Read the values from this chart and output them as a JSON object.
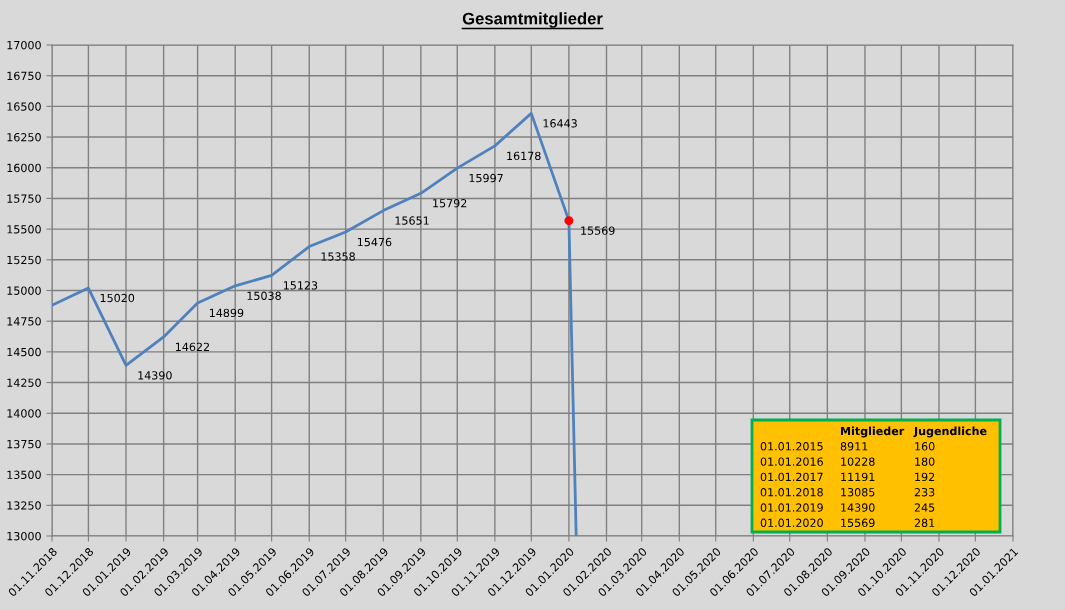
{
  "chart_data": {
    "type": "line",
    "title": "Gesamtmitglieder",
    "x": [
      "2018-11-01",
      "2018-12-01",
      "2019-01-01",
      "2019-02-01",
      "2019-03-01",
      "2019-04-01",
      "2019-05-01",
      "2019-06-01",
      "2019-07-01",
      "2019-08-01",
      "2019-09-01",
      "2019-10-01",
      "2019-11-01",
      "2019-12-01",
      "2020-01-01",
      "2020-01-07"
    ],
    "series": [
      {
        "color": "#4f81bd",
        "values": [
          14880,
          15020,
          14390,
          14622,
          14899,
          15038,
          15123,
          15358,
          15476,
          15651,
          15792,
          15997,
          16178,
          16443,
          15569,
          13000
        ],
        "value_labels": [
          null,
          "15020",
          "14390",
          "14622",
          "14899",
          "15038",
          "15123",
          "15358",
          "15476",
          "15651",
          "15792",
          "15997",
          "16178",
          "16443",
          "15569",
          null
        ]
      },
      {
        "type": "scatter",
        "color": "#ff0000",
        "x": [
          "2020-01-01"
        ],
        "values": [
          15569
        ]
      }
    ],
    "xlim": [
      "2018-11-01",
      "2021-01-01"
    ],
    "xticks": [
      {
        "value": "2018-11-01",
        "label": "01.11.2018"
      },
      {
        "value": "2018-12-01",
        "label": "01.12.2018"
      },
      {
        "value": "2019-01-01",
        "label": "01.01.2019"
      },
      {
        "value": "2019-02-01",
        "label": "01.02.2019"
      },
      {
        "value": "2019-03-01",
        "label": "01.03.2019"
      },
      {
        "value": "2019-04-01",
        "label": "01.04.2019"
      },
      {
        "value": "2019-05-01",
        "label": "01.05.2019"
      },
      {
        "value": "2019-06-01",
        "label": "01.06.2019"
      },
      {
        "value": "2019-07-01",
        "label": "01.07.2019"
      },
      {
        "value": "2019-08-01",
        "label": "01.08.2019"
      },
      {
        "value": "2019-09-01",
        "label": "01.09.2019"
      },
      {
        "value": "2019-10-01",
        "label": "01.10.2019"
      },
      {
        "value": "2019-11-01",
        "label": "01.11.2019"
      },
      {
        "value": "2019-12-01",
        "label": "01.12.2019"
      },
      {
        "value": "2020-01-01",
        "label": "01.01.2020"
      },
      {
        "value": "2020-02-01",
        "label": "01.02.2020"
      },
      {
        "value": "2020-03-01",
        "label": "01.03.2020"
      },
      {
        "value": "2020-04-01",
        "label": "01.04.2020"
      },
      {
        "value": "2020-05-01",
        "label": "01.05.2020"
      },
      {
        "value": "2020-06-01",
        "label": "01.06.2020"
      },
      {
        "value": "2020-07-01",
        "label": "01.07.2020"
      },
      {
        "value": "2020-08-01",
        "label": "01.08.2020"
      },
      {
        "value": "2020-09-01",
        "label": "01.09.2020"
      },
      {
        "value": "2020-10-01",
        "label": "01.10.2020"
      },
      {
        "value": "2020-11-01",
        "label": "01.11.2020"
      },
      {
        "value": "2020-12-01",
        "label": "01.12.2020"
      },
      {
        "value": "2021-01-01",
        "label": "01.01.2021"
      }
    ],
    "ylim": [
      13000,
      17000
    ],
    "yticks": [
      13000,
      13250,
      13500,
      13750,
      14000,
      14250,
      14500,
      14750,
      15000,
      15250,
      15500,
      15750,
      16000,
      16250,
      16500,
      16750,
      17000
    ],
    "grid": true,
    "marker": "none",
    "line_style": "solid",
    "annotations": [
      "Mitglieder",
      "Jugendliche",
      "01.01.2015",
      "8911",
      "160",
      "01.01.2016",
      "10228",
      "180",
      "01.01.2017",
      "11191",
      "192",
      "01.01.2018",
      "13085",
      "233",
      "01.01.2019",
      "14390",
      "245",
      "01.01.2020",
      "15569",
      "281"
    ]
  }
}
